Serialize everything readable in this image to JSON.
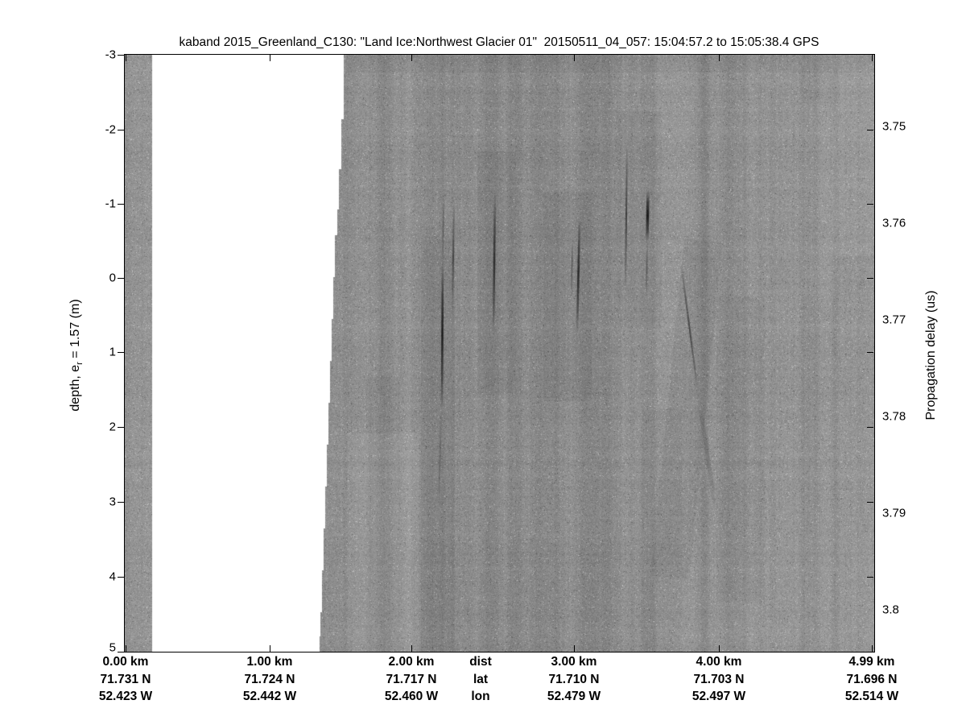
{
  "title": "kaband 2015_Greenland_C130: \"Land Ice:Northwest Glacier 01\"  20150511_04_057: 15:04:57.2 to 15:05:38.4 GPS",
  "left_axis": {
    "label_prefix": "depth, e",
    "label_subscript": "r",
    "label_suffix": " = 1.57 (m)",
    "tick_labels": [
      "-3",
      "-2",
      "-1",
      "0",
      "1",
      "2",
      "3",
      "4",
      "5"
    ]
  },
  "right_axis": {
    "label": "Propagation delay (us)",
    "tick_labels": [
      "3.75",
      "3.76",
      "3.77",
      "3.78",
      "3.79",
      "3.8"
    ]
  },
  "bottom_axis": {
    "header": {
      "dist": "dist",
      "lat": "lat",
      "lon": "lon"
    },
    "columns": [
      {
        "dist": "0.00 km",
        "lat": "71.731 N",
        "lon": "52.423 W"
      },
      {
        "dist": "1.00 km",
        "lat": "71.724 N",
        "lon": "52.442 W"
      },
      {
        "dist": "2.00 km",
        "lat": "71.717 N",
        "lon": "52.460 W"
      },
      {
        "dist": "3.00 km",
        "lat": "71.710 N",
        "lon": "52.479 W"
      },
      {
        "dist": "4.00 km",
        "lat": "71.703 N",
        "lon": "52.497 W"
      },
      {
        "dist": "4.99 km",
        "lat": "71.696 N",
        "lon": "52.514 W"
      }
    ]
  },
  "plot": {
    "ink_color": "#000000",
    "echogram_base_gray": "#8c8c8c",
    "nodata_color": "#ffffff"
  },
  "chart_data": {
    "type": "heatmap",
    "subtype": "radar-echogram",
    "title": "kaband 2015_Greenland_C130: \"Land Ice:Northwest Glacier 01\"  20150511_04_057: 15:04:57.2 to 15:05:38.4 GPS",
    "radar_band": "kaband",
    "campaign": "2015_Greenland_C130",
    "location_name": "Land Ice:Northwest Glacier 01",
    "segment_frame": "20150511_04_057",
    "gps_time_range": "15:04:57.2 to 15:05:38.4 GPS",
    "x_axis": {
      "label": "dist",
      "distance_km": [
        0.0,
        1.0,
        2.0,
        3.0,
        4.0,
        4.99
      ],
      "latitude_N": [
        71.731,
        71.724,
        71.717,
        71.71,
        71.703,
        71.696
      ],
      "longitude_W": [
        52.423,
        52.442,
        52.46,
        52.479,
        52.497,
        52.514
      ]
    },
    "y_axis_left": {
      "label": "depth, e_r = 1.57 (m)",
      "ticks_m": [
        -3,
        -2,
        -1,
        0,
        1,
        2,
        3,
        4,
        5
      ],
      "range_m": [
        -3,
        5
      ]
    },
    "y_axis_right": {
      "label": "Propagation delay (us)",
      "ticks_us": [
        3.75,
        3.76,
        3.77,
        3.78,
        3.79,
        3.8
      ]
    },
    "colormap": "grayscale",
    "legend": "none",
    "grid": false,
    "features": [
      "narrow gray data strip at far left (0.00-0.04 km)",
      "white no-data gap from ~0.04 km to ~1.45 km with jagged staircase right edge stepping left with depth (surface edge from ~1.48 km at -3 m to ~1.30 km at 5 m)",
      "continuous gray speckled echogram from ~1.45 km to 4.99 km",
      "dark near-vertical reflector streaks near 2.1, 2.2, 2.5, 2.9, 3.15, 3.35, 3.45 km between depths ~-2 m and ~2 m",
      "fainter diagonal reflector from ~3.7 km depth -0.5 m trending down-right to ~3.9 km depth 2 m",
      "subtle darker vertical banding around 2.0-2.3 km and 3.6-3.9 km"
    ]
  }
}
